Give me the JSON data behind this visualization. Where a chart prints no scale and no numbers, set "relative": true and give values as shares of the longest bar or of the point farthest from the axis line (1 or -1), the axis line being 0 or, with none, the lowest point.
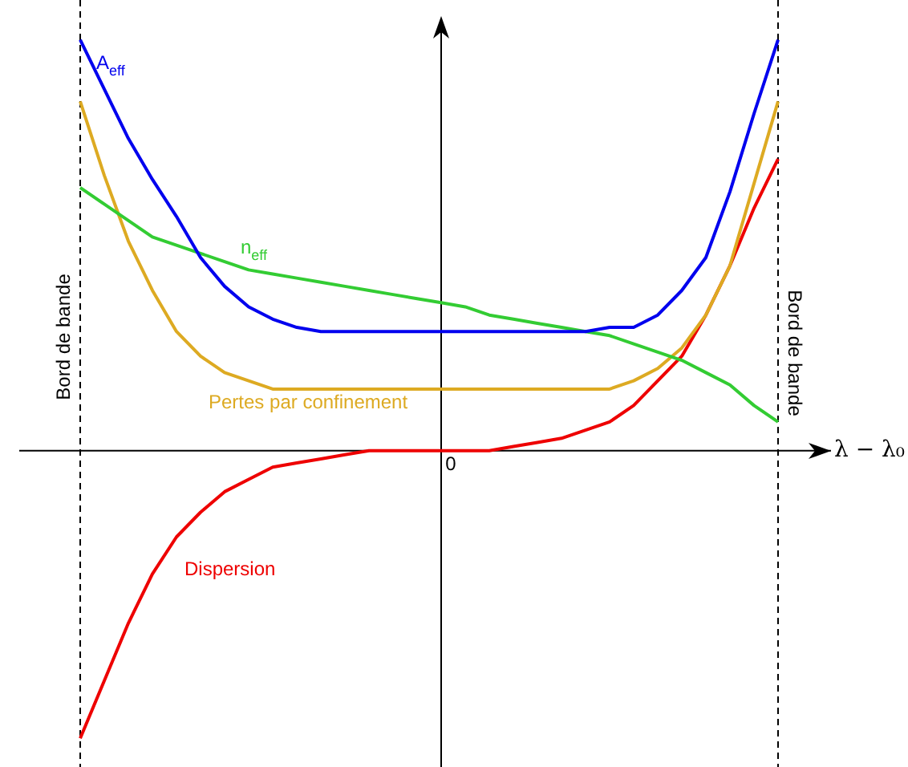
{
  "chart_data": {
    "type": "line",
    "relative": true,
    "xlabel": "λ − λ₀",
    "legend": false,
    "marker": "none",
    "line_style": "solid",
    "annotations": [
      "0",
      "Bord de bande",
      "Bord de bande"
    ],
    "categories": [
      null,
      null,
      null,
      null,
      null,
      null,
      null,
      null,
      null,
      null,
      null,
      null,
      null,
      null,
      null,
      null,
      null,
      null,
      null,
      null,
      null,
      null,
      null,
      null,
      null,
      null,
      null,
      null,
      null,
      null
    ],
    "series": [
      {
        "name": "A$_{eff}$",
        "color": "#0000ee",
        "values": [
          1.0,
          0.88,
          0.76,
          0.66,
          0.57,
          0.47,
          0.4,
          0.35,
          0.32,
          0.3,
          0.29,
          0.29,
          0.29,
          0.29,
          0.29,
          0.29,
          0.29,
          0.29,
          0.29,
          0.29,
          0.29,
          0.29,
          0.3,
          0.3,
          0.33,
          0.39,
          0.47,
          0.63,
          0.82,
          1.0
        ]
      },
      {
        "name": "n$_{eff}$",
        "color": "#33cc33",
        "values": [
          0.64,
          0.6,
          0.56,
          0.52,
          0.5,
          0.48,
          0.46,
          0.44,
          0.43,
          0.42,
          0.41,
          0.4,
          0.39,
          0.38,
          0.37,
          0.36,
          0.35,
          0.33,
          0.32,
          0.31,
          0.3,
          0.29,
          0.28,
          0.26,
          0.24,
          0.22,
          0.19,
          0.16,
          0.11,
          0.07
        ]
      },
      {
        "name": "Pertes par confinement",
        "color": "#ddaa22",
        "values": [
          0.85,
          0.67,
          0.51,
          0.39,
          0.29,
          0.23,
          0.19,
          0.17,
          0.15,
          0.15,
          0.15,
          0.15,
          0.15,
          0.15,
          0.15,
          0.15,
          0.15,
          0.15,
          0.15,
          0.15,
          0.15,
          0.15,
          0.15,
          0.17,
          0.2,
          0.25,
          0.33,
          0.45,
          0.65,
          0.85
        ]
      },
      {
        "name": "Dispersion",
        "color": "#ee0000",
        "values": [
          -0.7,
          -0.56,
          -0.42,
          -0.3,
          -0.21,
          -0.15,
          -0.1,
          -0.07,
          -0.04,
          -0.03,
          -0.02,
          -0.01,
          0,
          0,
          0,
          0,
          0,
          0,
          0.01,
          0.02,
          0.03,
          0.05,
          0.07,
          0.11,
          0.17,
          0.23,
          0.33,
          0.45,
          0.59,
          0.71
        ]
      }
    ]
  }
}
